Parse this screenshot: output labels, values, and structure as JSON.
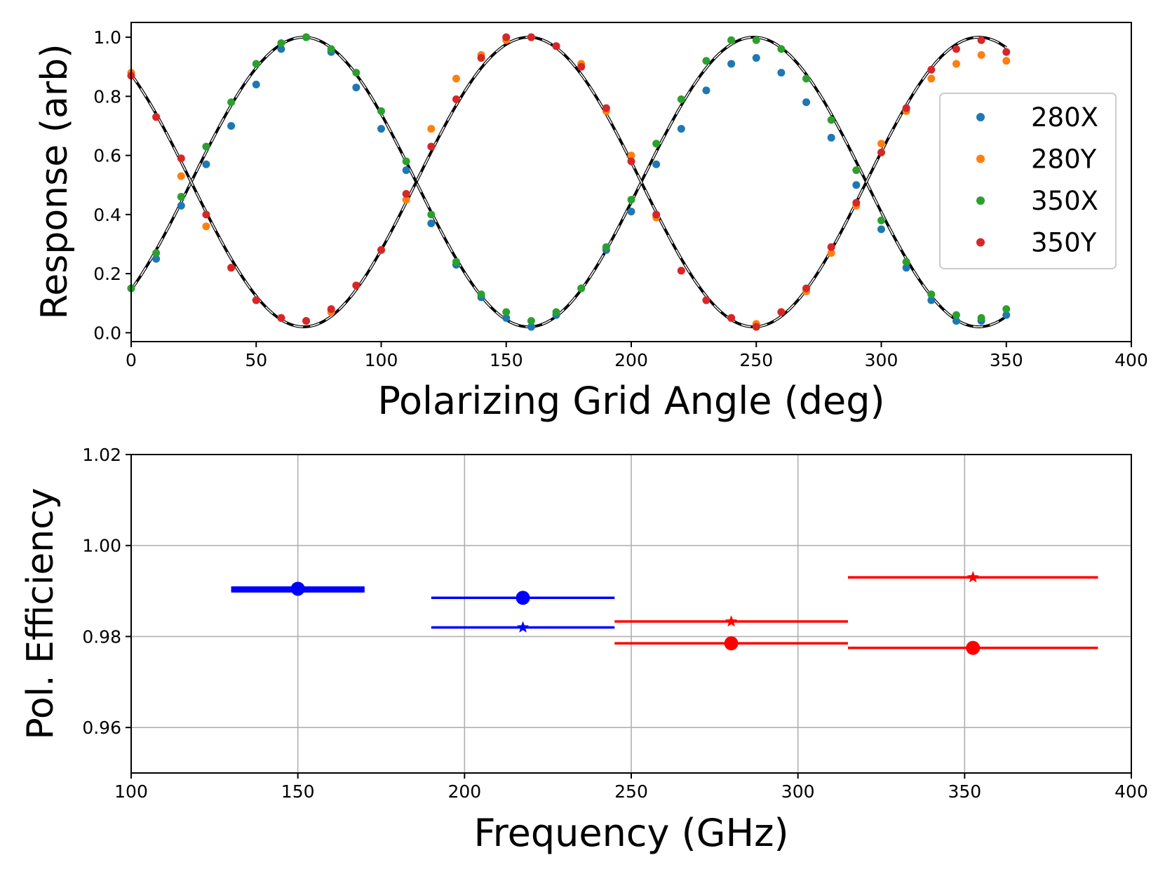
{
  "chart_data": [
    {
      "type": "scatter",
      "xlabel": "Polarizing Grid Angle (deg)",
      "ylabel": "Response (arb)",
      "xlim": [
        0,
        400
      ],
      "ylim": [
        -0.03,
        1.05
      ],
      "xticks": [
        0,
        50,
        100,
        150,
        200,
        250,
        300,
        350,
        400
      ],
      "xtick_labels": [
        "0",
        "50",
        "100",
        "150",
        "200",
        "250",
        "300",
        "350",
        "400"
      ],
      "yticks": [
        0.0,
        0.2,
        0.4,
        0.6,
        0.8,
        1.0
      ],
      "ytick_labels": [
        "0.0",
        "0.2",
        "0.4",
        "0.6",
        "0.8",
        "1.0"
      ],
      "grid": false,
      "legend_position": "right",
      "x": [
        0,
        10,
        20,
        30,
        40,
        50,
        60,
        70,
        80,
        90,
        100,
        110,
        120,
        130,
        140,
        150,
        160,
        170,
        180,
        190,
        200,
        210,
        220,
        230,
        240,
        250,
        260,
        270,
        280,
        290,
        300,
        310,
        320,
        330,
        340,
        350
      ],
      "series": [
        {
          "name": "280X",
          "color": "#1f77b4",
          "values": [
            0.15,
            0.25,
            0.43,
            0.57,
            0.7,
            0.84,
            0.96,
            1.0,
            0.95,
            0.83,
            0.69,
            0.55,
            0.37,
            0.23,
            0.12,
            0.05,
            0.02,
            0.06,
            0.15,
            0.28,
            0.41,
            0.57,
            0.69,
            0.82,
            0.91,
            0.93,
            0.88,
            0.78,
            0.66,
            0.5,
            0.35,
            0.22,
            0.11,
            0.04,
            0.04,
            0.06
          ]
        },
        {
          "name": "280Y",
          "color": "#ff7f0e",
          "values": [
            0.88,
            0.73,
            0.53,
            0.36,
            0.22,
            0.11,
            0.05,
            0.04,
            0.07,
            0.16,
            0.28,
            0.45,
            0.69,
            0.86,
            0.94,
            0.99,
            1.0,
            0.97,
            0.91,
            0.75,
            0.6,
            0.39,
            0.21,
            0.11,
            0.05,
            0.03,
            0.07,
            0.14,
            0.27,
            0.43,
            0.64,
            0.75,
            0.86,
            0.91,
            0.94,
            0.92
          ]
        },
        {
          "name": "350X",
          "color": "#2ca02c",
          "values": [
            0.15,
            0.27,
            0.46,
            0.63,
            0.78,
            0.91,
            0.98,
            1.0,
            0.96,
            0.88,
            0.75,
            0.58,
            0.4,
            0.24,
            0.13,
            0.07,
            0.04,
            0.07,
            0.15,
            0.29,
            0.45,
            0.64,
            0.79,
            0.92,
            0.99,
            0.99,
            0.96,
            0.86,
            0.72,
            0.55,
            0.38,
            0.24,
            0.13,
            0.06,
            0.05,
            0.08
          ]
        },
        {
          "name": "350Y",
          "color": "#d62728",
          "values": [
            0.87,
            0.73,
            0.59,
            0.4,
            0.22,
            0.11,
            0.05,
            0.04,
            0.08,
            0.16,
            0.28,
            0.47,
            0.63,
            0.79,
            0.93,
            1.0,
            1.0,
            0.97,
            0.9,
            0.76,
            0.58,
            0.4,
            0.21,
            0.11,
            0.05,
            0.02,
            0.07,
            0.15,
            0.29,
            0.44,
            0.61,
            0.76,
            0.89,
            0.96,
            0.99,
            0.95
          ]
        }
      ],
      "fits": [
        {
          "style": "dashed",
          "color": "#000000",
          "amplitude": 0.49,
          "offset": 0.51,
          "phase_deg": 69,
          "period_deg": 180
        },
        {
          "style": "dashed",
          "color": "#000000",
          "amplitude": 0.49,
          "offset": 0.51,
          "phase_deg": 159,
          "period_deg": 180
        }
      ]
    },
    {
      "type": "errorbar",
      "xlabel": "Frequency (GHz)",
      "ylabel": "Pol. Efficiency",
      "xlim": [
        100,
        400
      ],
      "ylim": [
        0.95,
        1.02
      ],
      "xticks": [
        100,
        150,
        200,
        250,
        300,
        350,
        400
      ],
      "xtick_labels": [
        "100",
        "150",
        "200",
        "250",
        "300",
        "350",
        "400"
      ],
      "yticks": [
        0.96,
        0.98,
        1.0,
        1.02
      ],
      "ytick_labels": [
        "0.96",
        "0.98",
        "1.00",
        "1.02"
      ],
      "grid": true,
      "points": [
        {
          "x": 150,
          "y": 0.9905,
          "x_low": 130,
          "x_high": 170,
          "marker": "circle",
          "color": "#0000ff",
          "width": "thick"
        },
        {
          "x": 150,
          "y": 0.9902,
          "x_low": 130,
          "x_high": 170,
          "marker": "star",
          "color": "#0000ff",
          "width": "thick"
        },
        {
          "x": 217.5,
          "y": 0.9885,
          "x_low": 190,
          "x_high": 245,
          "marker": "circle",
          "color": "#0000ff",
          "width": "normal"
        },
        {
          "x": 217.5,
          "y": 0.982,
          "x_low": 190,
          "x_high": 245,
          "marker": "star",
          "color": "#0000ff",
          "width": "normal"
        },
        {
          "x": 280,
          "y": 0.9833,
          "x_low": 245,
          "x_high": 315,
          "marker": "star",
          "color": "#ff0000",
          "width": "normal"
        },
        {
          "x": 280,
          "y": 0.9785,
          "x_low": 245,
          "x_high": 315,
          "marker": "circle",
          "color": "#ff0000",
          "width": "normal"
        },
        {
          "x": 352.5,
          "y": 0.993,
          "x_low": 315,
          "x_high": 390,
          "marker": "star",
          "color": "#ff0000",
          "width": "normal"
        },
        {
          "x": 352.5,
          "y": 0.9775,
          "x_low": 315,
          "x_high": 390,
          "marker": "circle",
          "color": "#ff0000",
          "width": "normal"
        }
      ]
    }
  ]
}
